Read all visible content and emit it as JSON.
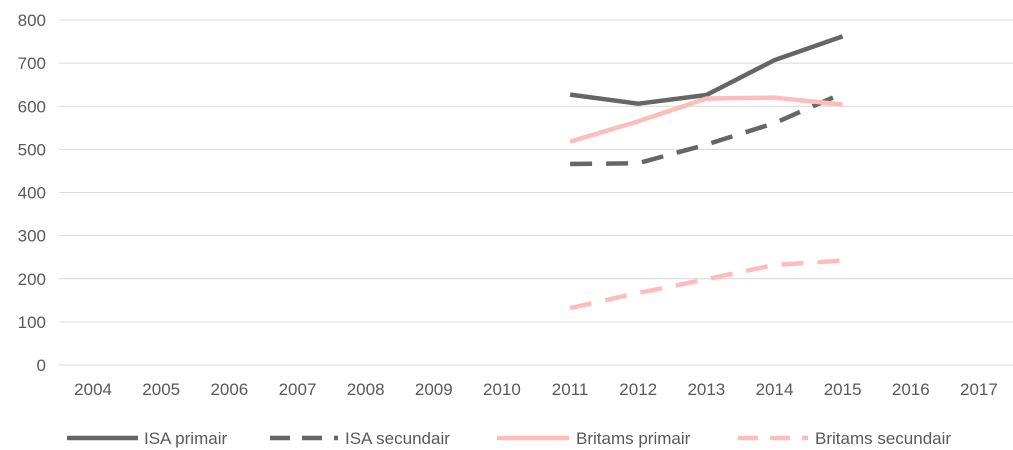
{
  "chart_data": {
    "type": "line",
    "title": "",
    "xlabel": "",
    "ylabel": "",
    "categories": [
      "2004",
      "2005",
      "2006",
      "2007",
      "2008",
      "2009",
      "2010",
      "2011",
      "2012",
      "2013",
      "2014",
      "2015",
      "2016",
      "2017"
    ],
    "ylim": [
      0,
      800
    ],
    "yticks": [
      "0",
      "100",
      "200",
      "300",
      "400",
      "500",
      "600",
      "700",
      "800"
    ],
    "grid": true,
    "legend_position": "bottom",
    "series": [
      {
        "name": "ISA primair",
        "color": "#666666",
        "dash": false,
        "values": [
          null,
          null,
          null,
          null,
          null,
          null,
          null,
          627,
          606,
          626,
          707,
          762,
          null,
          null
        ]
      },
      {
        "name": "ISA secundair",
        "color": "#666666",
        "dash": true,
        "values": [
          null,
          null,
          null,
          null,
          null,
          null,
          null,
          466,
          468,
          511,
          561,
          630,
          null,
          null
        ]
      },
      {
        "name": "Britams primair",
        "color": "#ffbcbc",
        "dash": false,
        "values": [
          null,
          null,
          null,
          null,
          null,
          null,
          null,
          518,
          565,
          618,
          620,
          604,
          null,
          null
        ]
      },
      {
        "name": "Britams secundair",
        "color": "#ffbcbc",
        "dash": true,
        "values": [
          null,
          null,
          null,
          null,
          null,
          null,
          null,
          132,
          167,
          199,
          232,
          242,
          null,
          null
        ]
      }
    ]
  }
}
